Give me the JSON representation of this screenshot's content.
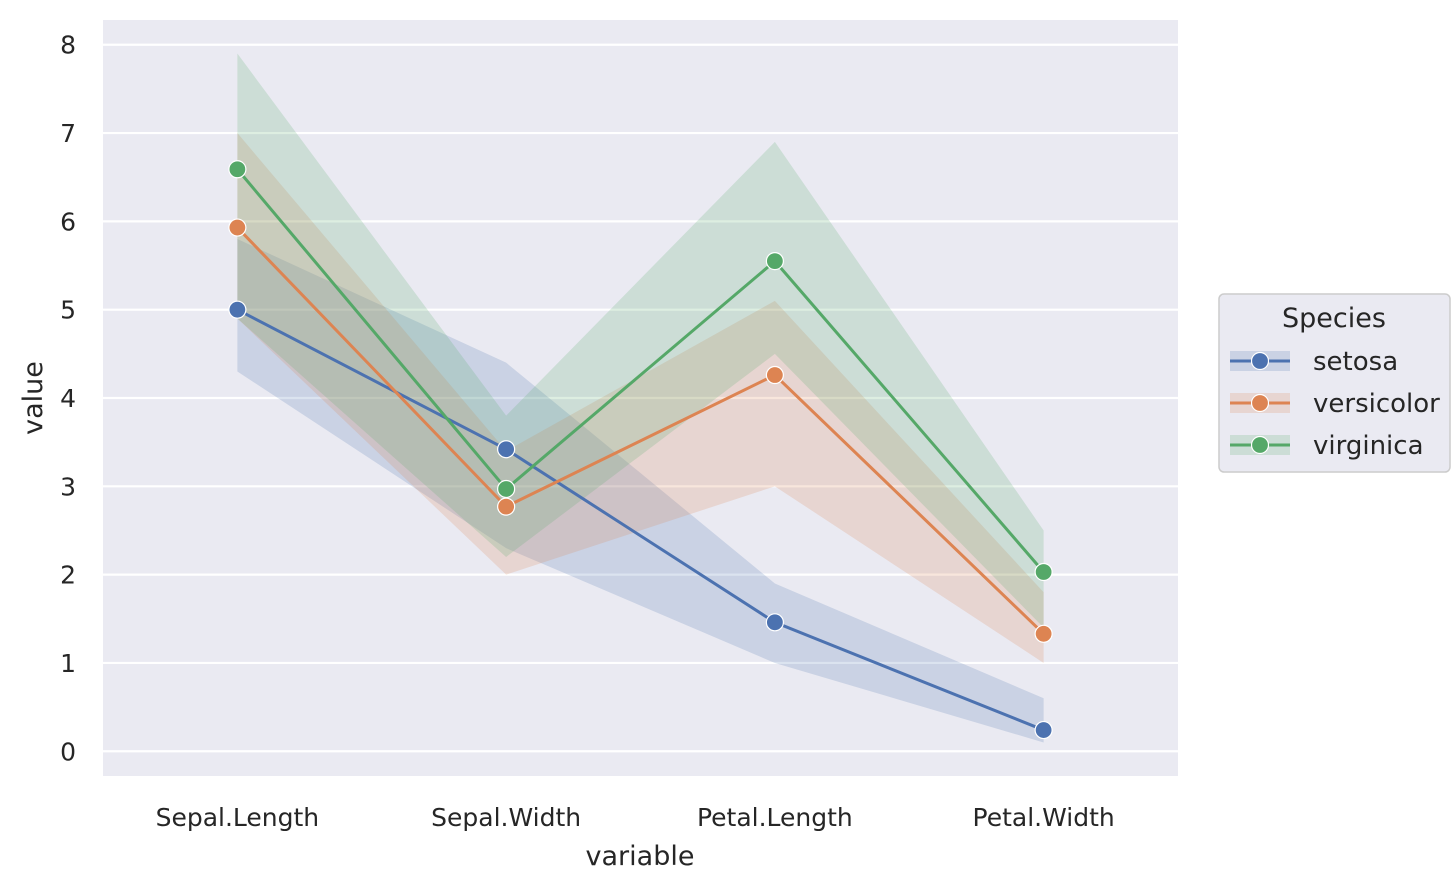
{
  "chart_data": {
    "type": "line",
    "xlabel": "variable",
    "ylabel": "value",
    "categories": [
      "Sepal.Length",
      "Sepal.Width",
      "Petal.Length",
      "Petal.Width"
    ],
    "ylim": [
      -0.28,
      8.28
    ],
    "yticks": [
      0,
      1,
      2,
      3,
      4,
      5,
      6,
      7,
      8
    ],
    "grid": true,
    "legend": {
      "title": "Species",
      "placement": "right"
    },
    "series": [
      {
        "name": "setosa",
        "color": "#4c72b0",
        "values": [
          5.0,
          3.42,
          1.46,
          0.24
        ],
        "band_low": [
          4.3,
          2.3,
          1.0,
          0.1
        ],
        "band_high": [
          5.8,
          4.4,
          1.9,
          0.6
        ]
      },
      {
        "name": "versicolor",
        "color": "#dd8452",
        "values": [
          5.93,
          2.77,
          4.26,
          1.33
        ],
        "band_low": [
          4.9,
          2.0,
          3.0,
          1.0
        ],
        "band_high": [
          7.0,
          3.4,
          5.1,
          1.8
        ]
      },
      {
        "name": "virginica",
        "color": "#55a868",
        "values": [
          6.59,
          2.97,
          5.55,
          2.03
        ],
        "band_low": [
          4.9,
          2.2,
          4.5,
          1.4
        ],
        "band_high": [
          7.9,
          3.8,
          6.9,
          2.5
        ]
      }
    ]
  }
}
